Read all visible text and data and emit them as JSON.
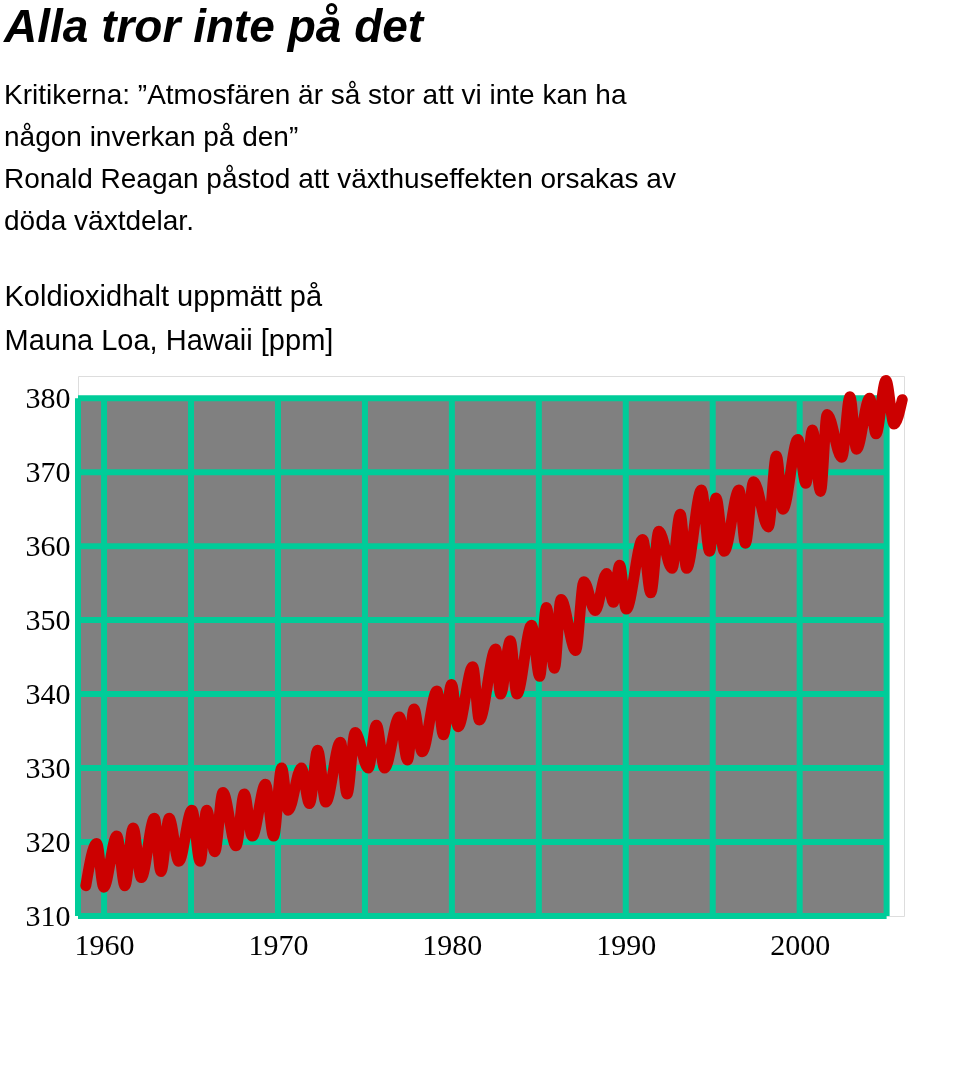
{
  "chart_data": {
    "type": "line",
    "title": "Alla tror inte på det",
    "subtitle": "Kritikerna:  ”Atmosfären är så stor att vi inte kan ha någon inverkan på den”\nRonald Reagan påstod att växthuseffekten orsakas av döda växtdelar.",
    "ylabel": "Koldioxidhalt uppmätt på Mauna Loa, Hawaii [ppm]",
    "x": [
      1958.95,
      1959.57,
      1959.98,
      1960.73,
      1961.2,
      1961.67,
      1962.14,
      1962.89,
      1963.27,
      1963.74,
      1964.3,
      1965.05,
      1965.52,
      1965.9,
      1966.37,
      1966.83,
      1967.59,
      1968.06,
      1968.52,
      1969.28,
      1969.75,
      1970.21,
      1970.59,
      1971.34,
      1971.81,
      1972.28,
      1972.75,
      1973.59,
      1973.97,
      1974.44,
      1975.19,
      1975.66,
      1976.13,
      1976.98,
      1977.45,
      1977.82,
      1978.29,
      1979.14,
      1979.51,
      1979.98,
      1980.36,
      1981.2,
      1981.58,
      1982.52,
      1982.8,
      1983.36,
      1983.74,
      1984.58,
      1985.05,
      1985.43,
      1985.9,
      1986.27,
      1987.12,
      1987.59,
      1988.24,
      1988.9,
      1989.28,
      1989.65,
      1990.03,
      1990.97,
      1991.44,
      1991.9,
      1992.66,
      1993.13,
      1993.5,
      1994.35,
      1994.82,
      1995.19,
      1995.66,
      1996.51,
      1996.88,
      1997.35,
      1998.2,
      1998.66,
      1999.04,
      1999.89,
      2000.36,
      2000.73,
      2001.2,
      2001.58,
      2002.42,
      2002.89,
      2003.27,
      2004.02,
      2004.39,
      2004.96,
      2005.43,
      2005.9
    ],
    "series": [
      {
        "color": "#cc0000",
        "values": [
          314.1,
          319.8,
          313.9,
          320.8,
          314.1,
          321.9,
          315.2,
          323.2,
          316.0,
          323.2,
          317.4,
          324.3,
          317.4,
          324.3,
          318.7,
          326.7,
          319.5,
          326.5,
          320.8,
          327.8,
          320.8,
          330.0,
          324.3,
          330.0,
          325.2,
          332.4,
          325.4,
          333.5,
          326.5,
          334.8,
          330.0,
          335.8,
          330.0,
          336.9,
          331.1,
          338.0,
          332.2,
          340.4,
          334.5,
          341.3,
          335.6,
          343.7,
          336.5,
          346.1,
          340.0,
          347.2,
          340.0,
          349.3,
          342.4,
          351.7,
          343.5,
          352.8,
          345.9,
          355.2,
          351.3,
          356.3,
          352.4,
          357.4,
          351.5,
          360.9,
          353.7,
          362.0,
          357.0,
          364.3,
          357.0,
          367.6,
          359.3,
          366.5,
          359.3,
          367.6,
          360.4,
          368.7,
          362.6,
          372.2,
          365.0,
          374.4,
          368.5,
          375.7,
          367.4,
          377.8,
          372.0,
          380.2,
          373.1,
          380.0,
          375.2,
          382.4,
          376.5,
          379.8
        ]
      }
    ],
    "xlim": [
      1958.5,
      2006
    ],
    "xticks": [
      1960,
      {
        "value": 1965,
        "label": null
      },
      1970,
      {
        "value": 1975,
        "label": null
      },
      1980,
      {
        "value": 1985,
        "label": null
      },
      1990,
      {
        "value": 1995,
        "label": null
      },
      2000,
      {
        "value": 2005,
        "label": null
      }
    ],
    "ylim": [
      310,
      383
    ],
    "yticks": [
      310,
      320,
      330,
      340,
      350,
      360,
      370,
      380
    ],
    "grid": true,
    "line_style": "solid"
  }
}
